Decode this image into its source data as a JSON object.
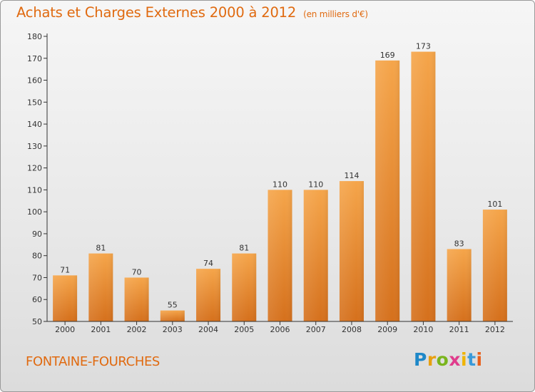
{
  "header": {
    "title": "Achats et Charges Externes 2000 à 2012",
    "unit": "(en milliers d'€)"
  },
  "footer": {
    "commune": "FONTAINE-FOURCHES"
  },
  "logo": {
    "letters": [
      "P",
      "r",
      "o",
      "x",
      "i",
      "t",
      "i"
    ],
    "colors": [
      "#1e88c8",
      "#e8a010",
      "#7ab51d",
      "#e03c8c",
      "#f0b400",
      "#3a9ad9",
      "#e8601c"
    ]
  },
  "colors": {
    "accent": "#e06a10",
    "bar_top": "#f5a54a",
    "bar_bottom": "#d5701c"
  },
  "chart_data": {
    "type": "bar",
    "title": "Achats et Charges Externes 2000 à 2012",
    "subtitle": "(en milliers d'€)",
    "categories": [
      "2000",
      "2001",
      "2002",
      "2003",
      "2004",
      "2005",
      "2006",
      "2007",
      "2008",
      "2009",
      "2010",
      "2011",
      "2012"
    ],
    "values": [
      71,
      81,
      70,
      55,
      74,
      81,
      110,
      110,
      114,
      169,
      173,
      83,
      101
    ],
    "ylim": [
      50,
      180
    ],
    "yticks": [
      50,
      60,
      70,
      80,
      90,
      100,
      110,
      120,
      130,
      140,
      150,
      160,
      170,
      180
    ],
    "grid": false,
    "legend": "none"
  }
}
